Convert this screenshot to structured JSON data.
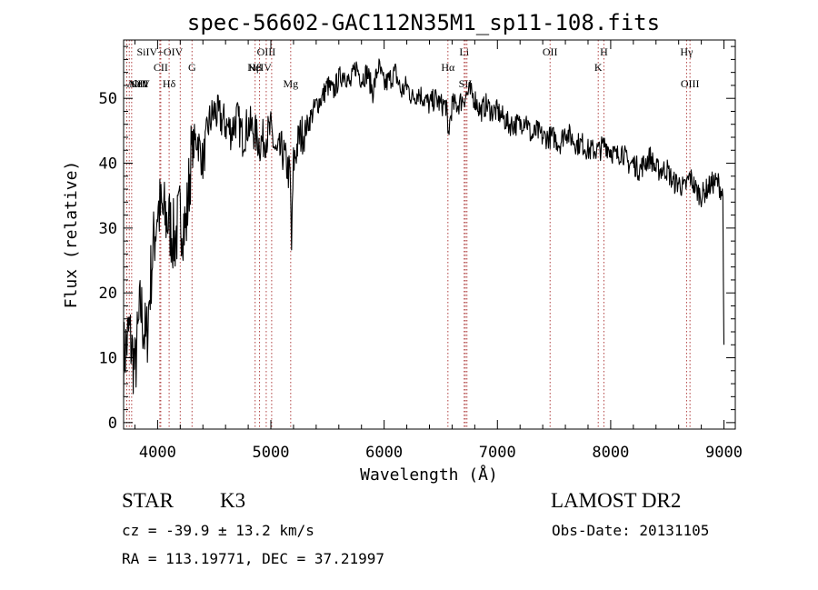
{
  "chart_data": {
    "type": "line",
    "title": "spec-56602-GAC112N35M1_sp11-108.fits",
    "xlabel": "Wavelength (Å)",
    "ylabel": "Flux (relative)",
    "xlim": [
      3700,
      9100
    ],
    "ylim": [
      -1,
      59
    ],
    "xticks": [
      {
        "value": 4000,
        "label": "4000"
      },
      {
        "value": 5000,
        "label": "5000"
      },
      {
        "value": 6000,
        "label": "6000"
      },
      {
        "value": 7000,
        "label": "7000"
      },
      {
        "value": 8000,
        "label": "8000"
      },
      {
        "value": 9000,
        "label": "9000"
      }
    ],
    "yticks": [
      {
        "value": 0,
        "label": "0"
      },
      {
        "value": 10,
        "label": "10"
      },
      {
        "value": 20,
        "label": "20"
      },
      {
        "value": 30,
        "label": "30"
      },
      {
        "value": 40,
        "label": "40"
      },
      {
        "value": 50,
        "label": "50"
      }
    ],
    "grid": false,
    "series": [
      {
        "x": [
          3700,
          3750,
          3800,
          3850,
          3900,
          3950,
          4000,
          4050,
          4100,
          4150,
          4200,
          4250,
          4300,
          4350,
          4400,
          4450,
          4500,
          4550,
          4600,
          4650,
          4700,
          4750,
          4800,
          4850,
          4900,
          4950,
          5000,
          5050,
          5100,
          5150,
          5170,
          5183,
          5200,
          5250,
          5300,
          5350,
          5400,
          5450,
          5500,
          5550,
          5600,
          5650,
          5700,
          5750,
          5800,
          5850,
          5900,
          5950,
          6000,
          6050,
          6100,
          6150,
          6200,
          6250,
          6300,
          6350,
          6400,
          6450,
          6500,
          6550,
          6563,
          6600,
          6650,
          6700,
          6750,
          6800,
          6850,
          6900,
          6950,
          7000,
          7050,
          7100,
          7150,
          7200,
          7250,
          7300,
          7350,
          7400,
          7450,
          7500,
          7550,
          7600,
          7650,
          7700,
          7750,
          7800,
          7850,
          7900,
          7950,
          8000,
          8050,
          8100,
          8150,
          8200,
          8250,
          8300,
          8350,
          8400,
          8450,
          8500,
          8550,
          8600,
          8650,
          8700,
          8750,
          8800,
          8850,
          8900,
          8950,
          8990,
          9000
        ],
        "y": [
          10,
          14,
          8,
          18,
          12,
          25,
          33,
          32,
          31,
          28,
          32,
          30,
          42,
          44,
          40,
          46,
          48,
          47,
          46,
          45,
          47,
          44,
          46,
          45,
          43,
          44,
          45,
          41,
          42,
          39,
          38,
          27,
          40,
          44,
          45,
          47,
          49,
          50,
          52,
          51,
          53,
          54,
          52,
          55,
          53,
          54,
          51,
          55,
          52,
          53,
          54,
          51,
          52,
          50,
          51,
          50,
          49,
          50,
          49,
          49,
          44,
          49,
          49,
          50,
          51,
          50,
          48,
          49,
          48,
          48,
          47,
          46,
          46,
          46,
          47,
          44,
          45,
          44,
          44,
          44,
          43,
          45,
          44,
          43,
          43,
          42,
          42,
          42,
          43,
          42,
          41,
          42,
          40,
          40,
          39,
          40,
          41,
          39,
          39,
          39,
          37,
          37,
          36,
          38,
          36,
          35,
          36,
          37,
          37,
          35,
          12
        ]
      }
    ],
    "lines": [
      {
        "x": 3728,
        "label": "AlIII",
        "row": 3
      },
      {
        "x": 3750,
        "label": "NeV",
        "row": 3
      },
      {
        "x": 3771,
        "label": "OII",
        "row": 3
      },
      {
        "x": 4020,
        "label": "SiIV+OIV",
        "row": 1
      },
      {
        "x": 4028,
        "label": "CII",
        "row": 2
      },
      {
        "x": 4102,
        "label": "Hδ",
        "row": 3
      },
      {
        "x": 4200,
        "label": "",
        "row": 0
      },
      {
        "x": 4304,
        "label": "G",
        "row": 2
      },
      {
        "x": 4861,
        "label": "Hβ",
        "row": 2
      },
      {
        "x": 4900,
        "label": "NeIV",
        "row": 2
      },
      {
        "x": 4959,
        "label": "OIII",
        "row": 1
      },
      {
        "x": 5007,
        "label": "",
        "row": 0
      },
      {
        "x": 5175,
        "label": "Mg",
        "row": 3
      },
      {
        "x": 6563,
        "label": "Hα",
        "row": 2
      },
      {
        "x": 6707,
        "label": "Li",
        "row": 1
      },
      {
        "x": 6717,
        "label": "SII",
        "row": 3
      },
      {
        "x": 6731,
        "label": "",
        "row": 0
      },
      {
        "x": 7465,
        "label": "OII",
        "row": 1
      },
      {
        "x": 7890,
        "label": "K",
        "row": 2
      },
      {
        "x": 7940,
        "label": "H",
        "row": 1
      },
      {
        "x": 8670,
        "label": "Hγ",
        "row": 1
      },
      {
        "x": 8700,
        "label": "OIII",
        "row": 3
      }
    ]
  },
  "info": {
    "class": "STAR",
    "subclass": "K3",
    "survey": "LAMOST DR2",
    "cz": "cz = -39.9 ± 13.2 km/s",
    "obs_date": "Obs-Date: 20131105",
    "radec": "RA = 113.19771, DEC =  37.21997"
  }
}
